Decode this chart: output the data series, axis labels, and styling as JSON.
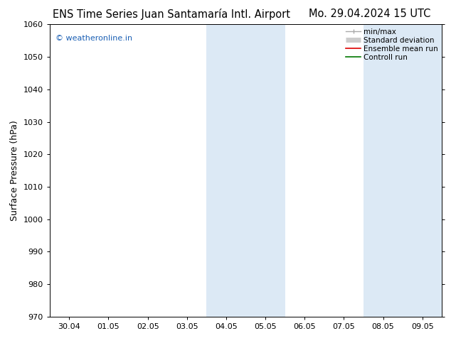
{
  "title_left": "ENS Time Series Juan Santamaría Intl. Airport",
  "title_right": "Mo. 29.04.2024 15 UTC",
  "ylabel": "Surface Pressure (hPa)",
  "ylim": [
    970,
    1060
  ],
  "yticks": [
    970,
    980,
    990,
    1000,
    1010,
    1020,
    1030,
    1040,
    1050,
    1060
  ],
  "xtick_labels": [
    "30.04",
    "01.05",
    "02.05",
    "03.05",
    "04.05",
    "05.05",
    "06.05",
    "07.05",
    "08.05",
    "09.05"
  ],
  "shaded_bands": [
    {
      "xstart": 4.0,
      "xend": 5.0,
      "color": "#dce9f5"
    },
    {
      "xstart": 5.0,
      "xend": 6.0,
      "color": "#dce9f5"
    },
    {
      "xstart": 8.0,
      "xend": 9.0,
      "color": "#dce9f5"
    },
    {
      "xstart": 9.0,
      "xend": 10.0,
      "color": "#dce9f5"
    }
  ],
  "watermark_text": "© weatheronline.in",
  "watermark_color": "#1a5fb4",
  "legend_items": [
    {
      "label": "min/max",
      "color": "#aaaaaa",
      "lw": 1.0,
      "style": "caps"
    },
    {
      "label": "Standard deviation",
      "color": "#cccccc",
      "lw": 5,
      "style": "thick"
    },
    {
      "label": "Ensemble mean run",
      "color": "#dd0000",
      "lw": 1.2,
      "style": "line"
    },
    {
      "label": "Controll run",
      "color": "#007700",
      "lw": 1.2,
      "style": "line"
    }
  ],
  "bg_color": "#ffffff",
  "plot_bg_color": "#ffffff",
  "title_fontsize": 10.5,
  "ylabel_fontsize": 9,
  "tick_fontsize": 8,
  "watermark_fontsize": 8,
  "legend_fontsize": 7.5
}
